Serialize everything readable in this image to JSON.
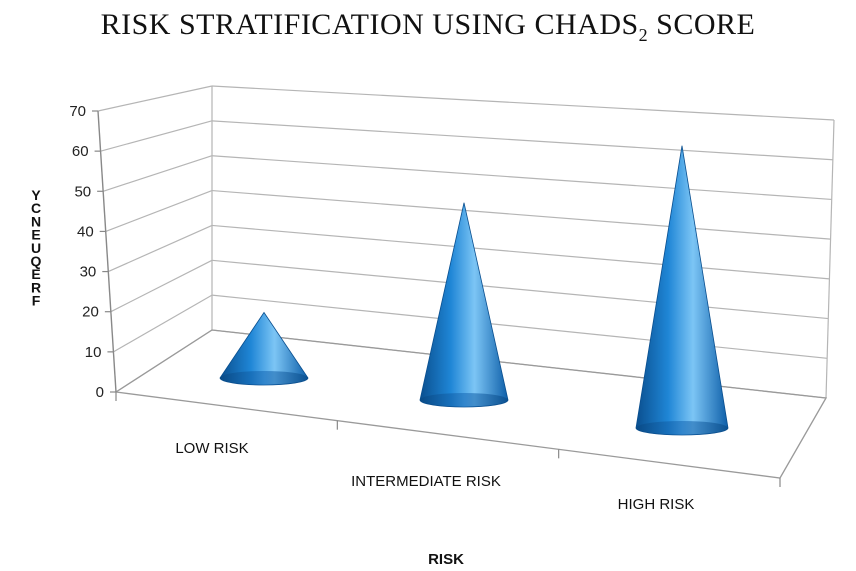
{
  "chart_data": {
    "type": "bar",
    "title_main": "RISK STRATIFICATION USING CHADS",
    "title_sub": "2",
    "title_end": " SCORE",
    "categories": [
      "LOW RISK",
      "INTERMEDIATE  RISK",
      "HIGH RISK"
    ],
    "values": [
      14,
      45,
      65
    ],
    "xlabel": "RISK",
    "ylabel": "FREQUENCY",
    "ylim": [
      0,
      70
    ],
    "yticks": [
      "0",
      "10",
      "20",
      "30",
      "40",
      "50",
      "60",
      "70"
    ],
    "grid": true,
    "style": "3d-cone",
    "colors": {
      "cone_main": "#1f86d6",
      "cone_dark": "#0a4f8f",
      "cone_light": "#7cc5f5",
      "grid": "#b5b5b5"
    }
  }
}
